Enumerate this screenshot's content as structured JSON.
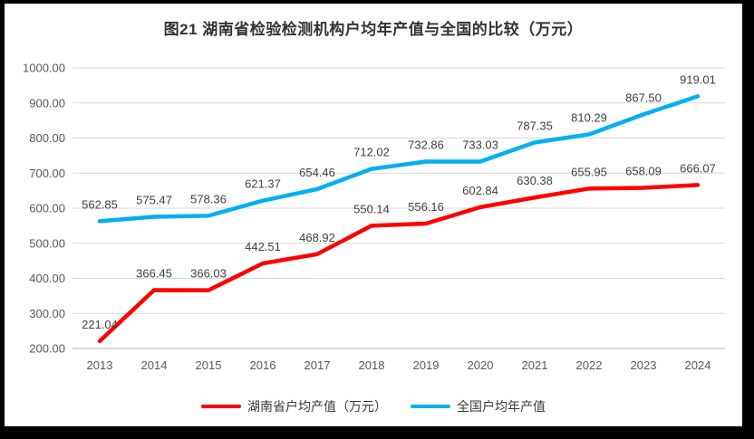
{
  "chart_data": {
    "type": "line",
    "title": "图21 湖南省检验检测机构户均年产值与全国的比较（万元）",
    "categories": [
      "2013",
      "2014",
      "2015",
      "2016",
      "2017",
      "2018",
      "2019",
      "2020",
      "2021",
      "2022",
      "2023",
      "2024"
    ],
    "series": [
      {
        "name": "湖南省户均产值（万元）",
        "color": "#ff0000",
        "values": [
          221.04,
          366.45,
          366.03,
          442.51,
          468.92,
          550.14,
          556.16,
          602.84,
          630.38,
          655.95,
          658.09,
          666.07
        ]
      },
      {
        "name": "全国户均年产值",
        "color": "#00b0f0",
        "values": [
          562.85,
          575.47,
          578.36,
          621.37,
          654.46,
          712.02,
          732.86,
          733.03,
          787.35,
          810.29,
          867.5,
          919.01
        ]
      }
    ],
    "ylabel": "",
    "xlabel": "",
    "ylim": [
      200,
      1000
    ],
    "ytick_step": 100,
    "ytick_labels": [
      "200.00",
      "300.00",
      "400.00",
      "500.00",
      "600.00",
      "700.00",
      "800.00",
      "900.00",
      "1000.00"
    ],
    "grid": true,
    "data_labels": true,
    "legend_position": "bottom"
  },
  "colors": {
    "hunan_line": "#ff0000",
    "national_line": "#00b0f0",
    "grid_line": "#d9d9d9",
    "axis_line": "#bfbfbf",
    "tick_text": "#595959",
    "data_label_text": "#404040",
    "title_text": "#333333",
    "frame": "#000000",
    "background": "#ffffff"
  }
}
